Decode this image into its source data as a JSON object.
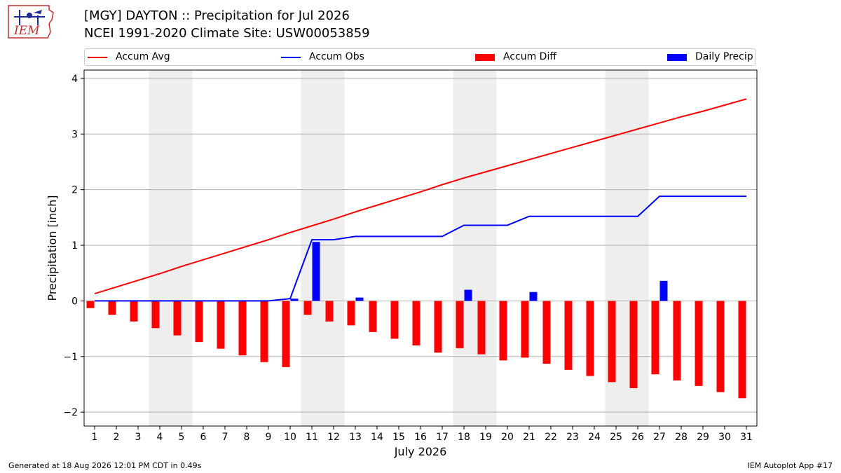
{
  "header": {
    "title_line1": "[MGY] DAYTON :: Precipitation for Jul 2026",
    "title_line2": "NCEI 1991-2020 Climate Site: USW00053859"
  },
  "logo": {
    "text": "IEM",
    "icon": "iem-logo-icon"
  },
  "footer": {
    "left": "Generated at 18 Aug 2026 12:01 PM CDT in 0.49s",
    "right": "IEM Autoplot App #17"
  },
  "colors": {
    "avg": "#ff0000",
    "obs": "#0000ff",
    "diff": "#ff0000",
    "daily": "#0000ff",
    "weekend": "#eeeeee",
    "grid": "#b0b0b0"
  },
  "chart_data": {
    "type": "bar",
    "title": "[MGY] DAYTON :: Precipitation for Jul 2026",
    "subtitle": "NCEI 1991-2020 Climate Site: USW00053859",
    "xlabel": "July 2026",
    "ylabel": "Precipitation [inch]",
    "ylim": [
      -2.25,
      4.15
    ],
    "yticks": [
      -2,
      -1,
      0,
      1,
      2,
      3,
      4
    ],
    "ytick_labels": [
      "−2",
      "−1",
      "0",
      "1",
      "2",
      "3",
      "4"
    ],
    "grid": true,
    "legend_position": "top",
    "categories": [
      "1",
      "2",
      "3",
      "4",
      "5",
      "6",
      "7",
      "8",
      "9",
      "10",
      "11",
      "12",
      "13",
      "14",
      "15",
      "16",
      "17",
      "18",
      "19",
      "20",
      "21",
      "22",
      "23",
      "24",
      "25",
      "26",
      "27",
      "28",
      "29",
      "30",
      "31"
    ],
    "weekend_shading": [
      [
        4,
        5
      ],
      [
        11,
        12
      ],
      [
        18,
        19
      ],
      [
        25,
        26
      ]
    ],
    "series": [
      {
        "name": "Accum Avg",
        "type": "line",
        "values": [
          0.13,
          0.25,
          0.37,
          0.49,
          0.62,
          0.74,
          0.86,
          0.98,
          1.1,
          1.23,
          1.35,
          1.47,
          1.6,
          1.72,
          1.84,
          1.96,
          2.09,
          2.21,
          2.32,
          2.43,
          2.54,
          2.65,
          2.76,
          2.87,
          2.98,
          3.09,
          3.2,
          3.31,
          3.41,
          3.52,
          3.63
        ]
      },
      {
        "name": "Accum Obs",
        "type": "line",
        "values": [
          0.0,
          0.0,
          0.0,
          0.0,
          0.0,
          0.0,
          0.0,
          0.0,
          0.0,
          0.04,
          1.1,
          1.1,
          1.16,
          1.16,
          1.16,
          1.16,
          1.16,
          1.36,
          1.36,
          1.36,
          1.52,
          1.52,
          1.52,
          1.52,
          1.52,
          1.52,
          1.88,
          1.88,
          1.88,
          1.88,
          1.88
        ]
      },
      {
        "name": "Accum Diff",
        "type": "bar",
        "values": [
          -0.13,
          -0.25,
          -0.37,
          -0.49,
          -0.62,
          -0.74,
          -0.86,
          -0.98,
          -1.1,
          -1.19,
          -0.25,
          -0.37,
          -0.44,
          -0.56,
          -0.68,
          -0.8,
          -0.93,
          -0.85,
          -0.96,
          -1.07,
          -1.02,
          -1.13,
          -1.24,
          -1.35,
          -1.46,
          -1.57,
          -1.32,
          -1.43,
          -1.53,
          -1.64,
          -1.75
        ]
      },
      {
        "name": "Daily Precip",
        "type": "bar",
        "values": [
          0,
          0,
          0,
          0,
          0,
          0,
          0,
          0,
          0,
          0.04,
          1.06,
          0,
          0.06,
          0,
          0,
          0,
          0,
          0.2,
          0,
          0,
          0.16,
          0,
          0,
          0,
          0,
          0,
          0.36,
          0,
          0,
          0,
          0
        ]
      }
    ]
  }
}
